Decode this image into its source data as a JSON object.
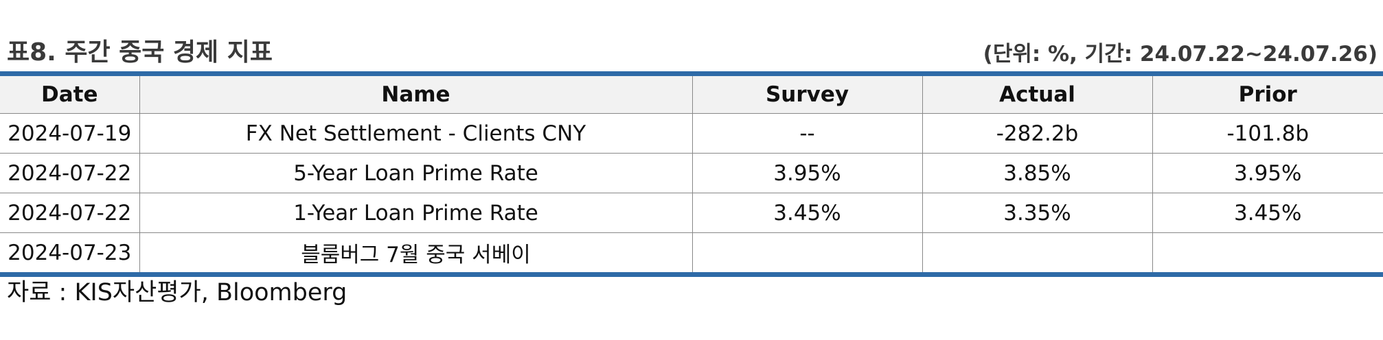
{
  "header": {
    "title": "표8. 주간 중국 경제 지표",
    "unit_note": "(단위: %, 기간: 24.07.22~24.07.26)"
  },
  "table": {
    "columns": [
      "Date",
      "Name",
      "Survey",
      "Actual",
      "Prior"
    ],
    "rows": [
      [
        "2024-07-19",
        "FX Net Settlement - Clients CNY",
        "--",
        "-282.2b",
        "-101.8b"
      ],
      [
        "2024-07-22",
        "5-Year Loan Prime Rate",
        "3.95%",
        "3.85%",
        "3.95%"
      ],
      [
        "2024-07-22",
        "1-Year Loan Prime Rate",
        "3.45%",
        "3.35%",
        "3.45%"
      ],
      [
        "2024-07-23",
        "블룸버그 7월 중국 서베이",
        "",
        "",
        ""
      ]
    ]
  },
  "footer": {
    "source": "자료 : KIS자산평가, Bloomberg"
  },
  "colors": {
    "rule_blue": "#2e6aa7",
    "header_bg": "#f2f2f2",
    "grid_line": "#888888"
  }
}
